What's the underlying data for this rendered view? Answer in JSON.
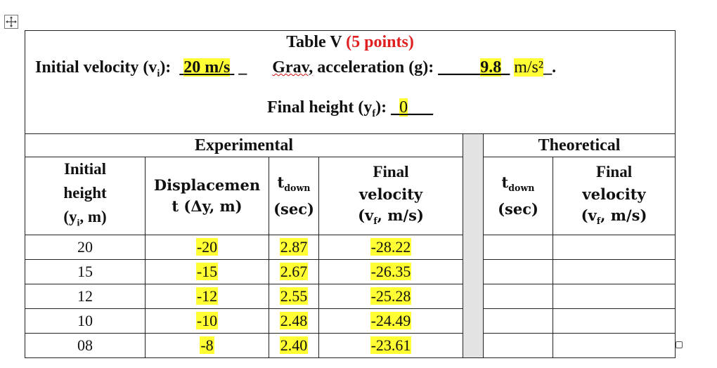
{
  "table": {
    "title": "Table V",
    "points": "(5 points)",
    "initial_velocity_label": "Initial velocity (v",
    "initial_velocity_sub": "i",
    "initial_velocity_colon": "):",
    "initial_velocity_value": "20 m/s",
    "initial_velocity_after": "_",
    "grav_label_word": "Grav,",
    "grav_label_rest": " acceleration (g):",
    "grav_leading_blank": "_____",
    "grav_value": "9.8",
    "grav_trailing_blank": "_",
    "grav_unit": "m/s²",
    "grav_end": "_.",
    "final_height_label": "Final height (y",
    "final_height_sub": "f",
    "final_height_colon": "):",
    "final_height_leading": "_",
    "final_height_value": "0",
    "final_height_trailing": "___"
  },
  "sections": {
    "experimental": "Experimental",
    "theoretical": "Theoretical"
  },
  "columns": {
    "initial_height_1": "Initial",
    "initial_height_2": "height",
    "initial_height_3a": "(y",
    "initial_height_3sub": "i",
    "initial_height_3b": ", m)",
    "displacement_1": "Displacemen",
    "displacement_2": "t (Δy, m)",
    "tdown_t": "t",
    "tdown_sub": "down",
    "tdown_unit": "(sec)",
    "final_velocity_1": "Final",
    "final_velocity_2": "velocity",
    "final_velocity_3a": "(v",
    "final_velocity_3sub": "f",
    "final_velocity_3b": ", m/s)",
    "theo_tdown_t": "t",
    "theo_tdown_sub": "down",
    "theo_tdown_unit": "(sec)",
    "theo_final_1": "Final",
    "theo_final_2": "velocity",
    "theo_final_3a": "(v",
    "theo_final_3sub": "f",
    "theo_final_3b": ", m/s)"
  },
  "rows": [
    {
      "height": "20",
      "displacement": "-20",
      "tdown": "2.87",
      "velocity": "-28.22"
    },
    {
      "height": "15",
      "displacement": "-15",
      "tdown": "2.67",
      "velocity": "-26.35"
    },
    {
      "height": "12",
      "displacement": "-12",
      "tdown": "2.55",
      "velocity": "-25.28"
    },
    {
      "height": "10",
      "displacement": "-10",
      "tdown": "2.48",
      "velocity": "-24.49"
    },
    {
      "height": "08",
      "displacement": "-8",
      "tdown": "2.40",
      "velocity": "-23.61"
    }
  ],
  "icons": {
    "move": "move-arrows-icon",
    "resize": "resize-handle-icon"
  },
  "colors": {
    "highlight": "#ffff33",
    "points_red": "#e02020",
    "gap_column": "#e3e3e3"
  }
}
